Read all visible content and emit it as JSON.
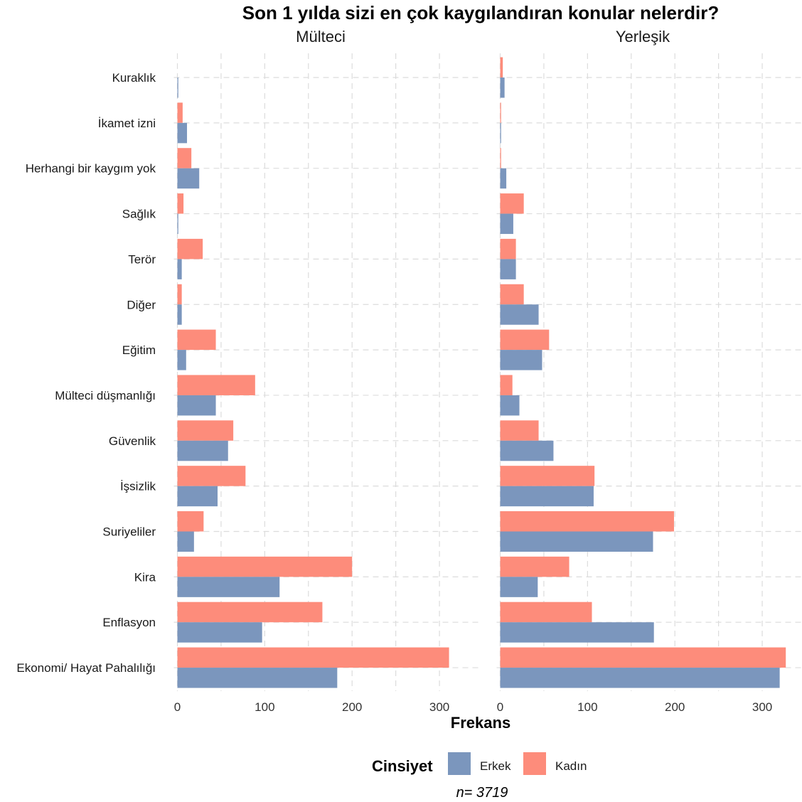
{
  "chart_data": {
    "type": "bar",
    "orientation": "horizontal",
    "title": "Son 1 yılda sizi en çok kaygılandıran konular nelerdir?",
    "xlabel": "Frekans",
    "ylabel": "",
    "caption": "n=  3719",
    "legend": {
      "title": "Cinsiyet",
      "position": "bottom"
    },
    "grid": true,
    "categories": [
      "Kuraklık",
      "İkamet izni",
      "Herhangi bir kaygım yok",
      "Sağlık",
      "Terör",
      "Diğer",
      "Eğitim",
      "Mülteci düşmanlığı",
      "Güvenlik",
      "İşsizlik",
      "Suriyeliler",
      "Kira",
      "Enflasyon",
      "Ekonomi/ Hayat Pahalılığı"
    ],
    "xlim": [
      0,
      330
    ],
    "xticks": [
      0,
      100,
      200,
      300
    ],
    "series": [
      {
        "name": "Erkek",
        "color": "#7b96bd"
      },
      {
        "name": "Kadın",
        "color": "#fd8c7b"
      }
    ],
    "panels": [
      {
        "name": "Mülteci",
        "values": {
          "Erkek": [
            1,
            11,
            25,
            1,
            5,
            5,
            10,
            44,
            58,
            46,
            19,
            117,
            97,
            183
          ],
          "Kadın": [
            0,
            6,
            16,
            7,
            29,
            5,
            44,
            89,
            64,
            78,
            30,
            200,
            166,
            311
          ]
        }
      },
      {
        "name": "Yerleşik",
        "values": {
          "Erkek": [
            5,
            1,
            7,
            15,
            18,
            44,
            48,
            22,
            61,
            107,
            175,
            43,
            176,
            320
          ],
          "Kadın": [
            3,
            1,
            1,
            27,
            18,
            27,
            56,
            14,
            44,
            108,
            199,
            79,
            105,
            327
          ]
        }
      }
    ]
  }
}
